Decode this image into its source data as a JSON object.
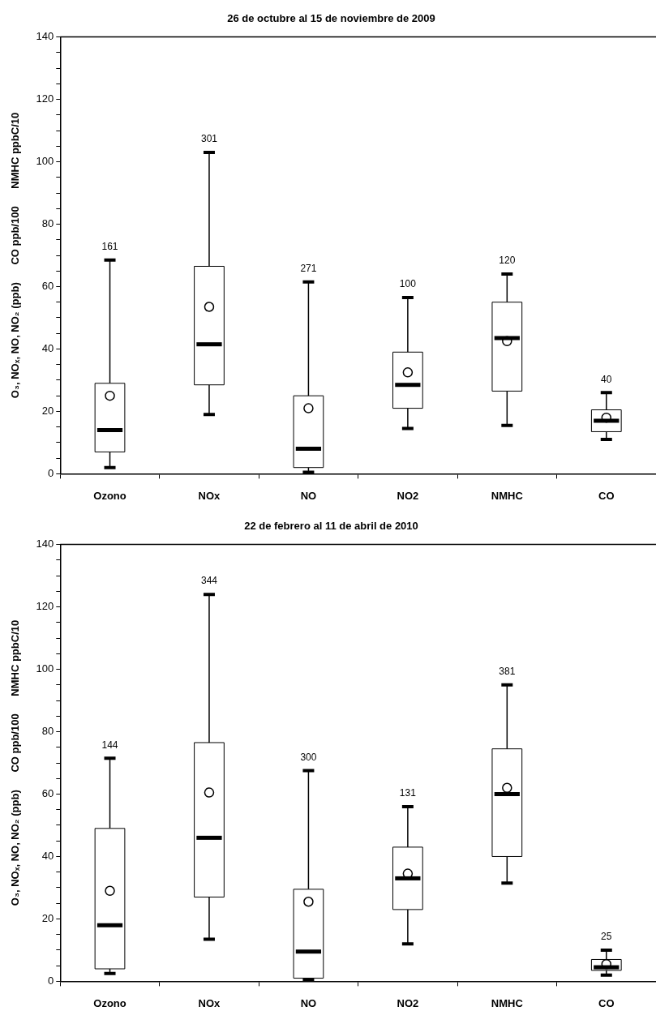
{
  "chart_data": [
    {
      "type": "box",
      "title": "26 de octubre al 15 de noviembre de 2009",
      "ylabel": "O₃, NOₓ, NO, NO₂ (ppb)      CO ppb/100      NMHC ppbC/10",
      "categories": [
        "Ozono",
        "NOx",
        "NO",
        "NO2",
        "NMHC",
        "CO"
      ],
      "boxes": [
        {
          "low": 2,
          "q1": 7,
          "median": 14,
          "q3": 29,
          "high": 68.5,
          "mean": 25
        },
        {
          "low": 19,
          "q1": 28.5,
          "median": 41.5,
          "q3": 66.5,
          "high": 103,
          "mean": 53.5
        },
        {
          "low": 0.5,
          "q1": 2,
          "median": 8,
          "q3": 25,
          "high": 61.5,
          "mean": 21
        },
        {
          "low": 14.5,
          "q1": 21,
          "median": 28.5,
          "q3": 39,
          "high": 56.5,
          "mean": 32.5
        },
        {
          "low": 15.5,
          "q1": 26.5,
          "median": 43.5,
          "q3": 55,
          "high": 64,
          "mean": 42.5
        },
        {
          "low": 11,
          "q1": 13.5,
          "median": 17,
          "q3": 20.5,
          "high": 26,
          "mean": 18
        }
      ],
      "ylim": [
        0,
        140
      ],
      "yticks": [
        0,
        {
          "value": 5,
          "label": null
        },
        {
          "value": 10,
          "label": null
        },
        {
          "value": 15,
          "label": null
        },
        20,
        {
          "value": 25,
          "label": null
        },
        {
          "value": 30,
          "label": null
        },
        {
          "value": 35,
          "label": null
        },
        40,
        {
          "value": 45,
          "label": null
        },
        {
          "value": 50,
          "label": null
        },
        {
          "value": 55,
          "label": null
        },
        60,
        {
          "value": 65,
          "label": null
        },
        {
          "value": 70,
          "label": null
        },
        {
          "value": 75,
          "label": null
        },
        80,
        {
          "value": 85,
          "label": null
        },
        {
          "value": 90,
          "label": null
        },
        {
          "value": 95,
          "label": null
        },
        100,
        {
          "value": 105,
          "label": null
        },
        {
          "value": 110,
          "label": null
        },
        {
          "value": 115,
          "label": null
        },
        120,
        {
          "value": 125,
          "label": null
        },
        {
          "value": 130,
          "label": null
        },
        {
          "value": 135,
          "label": null
        },
        140
      ],
      "annotations": [
        {
          "text": "161",
          "x": "Ozono",
          "y": 68.5
        },
        {
          "text": "301",
          "x": "NOx",
          "y": 103
        },
        {
          "text": "271",
          "x": "NO",
          "y": 61.5
        },
        {
          "text": "100",
          "x": "NO2",
          "y": 56.5
        },
        {
          "text": "120",
          "x": "NMHC",
          "y": 64
        },
        {
          "text": "40",
          "x": "CO",
          "y": 26
        }
      ]
    },
    {
      "type": "box",
      "title": "22 de febrero al 11 de abril de 2010",
      "ylabel": "O₃, NOₓ, NO, NO₂ (ppb)      CO ppb/100      NMHC ppbC/10",
      "categories": [
        "Ozono",
        "NOx",
        "NO",
        "NO2",
        "NMHC",
        "CO"
      ],
      "boxes": [
        {
          "low": 2.5,
          "q1": 4,
          "median": 18,
          "q3": 49,
          "high": 71.5,
          "mean": 29
        },
        {
          "low": 13.5,
          "q1": 27,
          "median": 46,
          "q3": 76.5,
          "high": 124,
          "mean": 60.5
        },
        {
          "low": 0.5,
          "q1": 1,
          "median": 9.5,
          "q3": 29.5,
          "high": 67.5,
          "mean": 25.5
        },
        {
          "low": 12,
          "q1": 23,
          "median": 33,
          "q3": 43,
          "high": 56,
          "mean": 34.5
        },
        {
          "low": 31.5,
          "q1": 40,
          "median": 60,
          "q3": 74.5,
          "high": 95,
          "mean": 62
        },
        {
          "low": 2,
          "q1": 3.5,
          "median": 4.5,
          "q3": 7,
          "high": 10,
          "mean": 5.5
        }
      ],
      "ylim": [
        0,
        140
      ],
      "yticks": [
        0,
        {
          "value": 5,
          "label": null
        },
        {
          "value": 10,
          "label": null
        },
        {
          "value": 15,
          "label": null
        },
        20,
        {
          "value": 25,
          "label": null
        },
        {
          "value": 30,
          "label": null
        },
        {
          "value": 35,
          "label": null
        },
        40,
        {
          "value": 45,
          "label": null
        },
        {
          "value": 50,
          "label": null
        },
        {
          "value": 55,
          "label": null
        },
        60,
        {
          "value": 65,
          "label": null
        },
        {
          "value": 70,
          "label": null
        },
        {
          "value": 75,
          "label": null
        },
        80,
        {
          "value": 85,
          "label": null
        },
        {
          "value": 90,
          "label": null
        },
        {
          "value": 95,
          "label": null
        },
        100,
        {
          "value": 105,
          "label": null
        },
        {
          "value": 110,
          "label": null
        },
        {
          "value": 115,
          "label": null
        },
        120,
        {
          "value": 125,
          "label": null
        },
        {
          "value": 130,
          "label": null
        },
        {
          "value": 135,
          "label": null
        },
        140
      ],
      "annotations": [
        {
          "text": "144",
          "x": "Ozono",
          "y": 71.5
        },
        {
          "text": "344",
          "x": "NOx",
          "y": 124
        },
        {
          "text": "300",
          "x": "NO",
          "y": 67.5
        },
        {
          "text": "131",
          "x": "NO2",
          "y": 56
        },
        {
          "text": "381",
          "x": "NMHC",
          "y": 95
        },
        {
          "text": "25",
          "x": "CO",
          "y": 10
        }
      ]
    }
  ]
}
